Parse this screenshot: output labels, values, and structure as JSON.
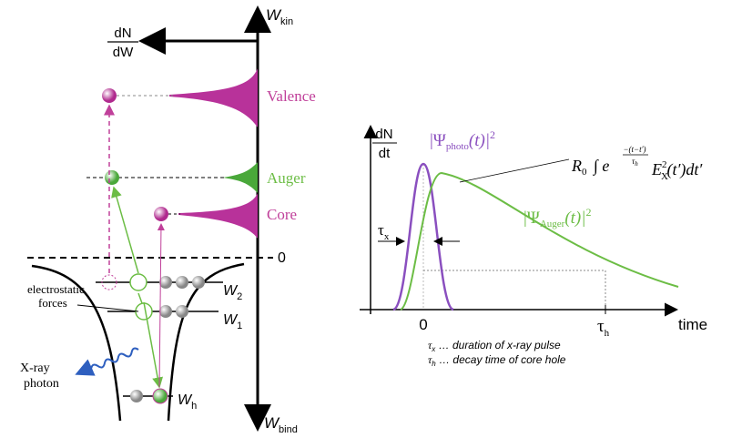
{
  "left": {
    "w_kin": {
      "base": "W",
      "sub": "kin"
    },
    "w_bind": {
      "base": "W",
      "sub": "bind"
    },
    "dn_dw": {
      "num": "dN",
      "den": "dW"
    },
    "valence": "Valence",
    "auger": "Auger",
    "core": "Core",
    "zero": "0",
    "w2": {
      "base": "W",
      "sub": "2"
    },
    "w1": {
      "base": "W",
      "sub": "1"
    },
    "wh": {
      "base": "W",
      "sub": "h"
    },
    "electrostatic": [
      "electrostatic",
      "forces"
    ],
    "xray": [
      "X-ray",
      "photon"
    ]
  },
  "right": {
    "dn_dt": {
      "num": "dN",
      "den": "dt"
    },
    "psi_photo": {
      "pre": "|Ψ",
      "sub": "photo",
      "post": "(t)|",
      "sup": "2"
    },
    "psi_auger": {
      "pre": "|Ψ",
      "sub": "Auger",
      "post": "(t)|",
      "sup": "2"
    },
    "formula": {
      "r": "R",
      "r_sub": "0",
      "integral": "∫ e",
      "exp_num": "−(t−t′)",
      "exp_den": "τ",
      "exp_den_sub": "h",
      "e": "E",
      "e_sub": "X",
      "e_sup": "2",
      "tail": "(t′)dt′"
    },
    "tau_x": {
      "base": "τ",
      "sub": "x"
    },
    "zero": "0",
    "tau_h": {
      "base": "τ",
      "sub": "h"
    },
    "time": "time",
    "notes": [
      {
        "base": "τ",
        "sub": "x",
        "text": " … duration of x-ray pulse"
      },
      {
        "base": "τ",
        "sub": "h",
        "text": " … decay time of core hole"
      }
    ]
  }
}
